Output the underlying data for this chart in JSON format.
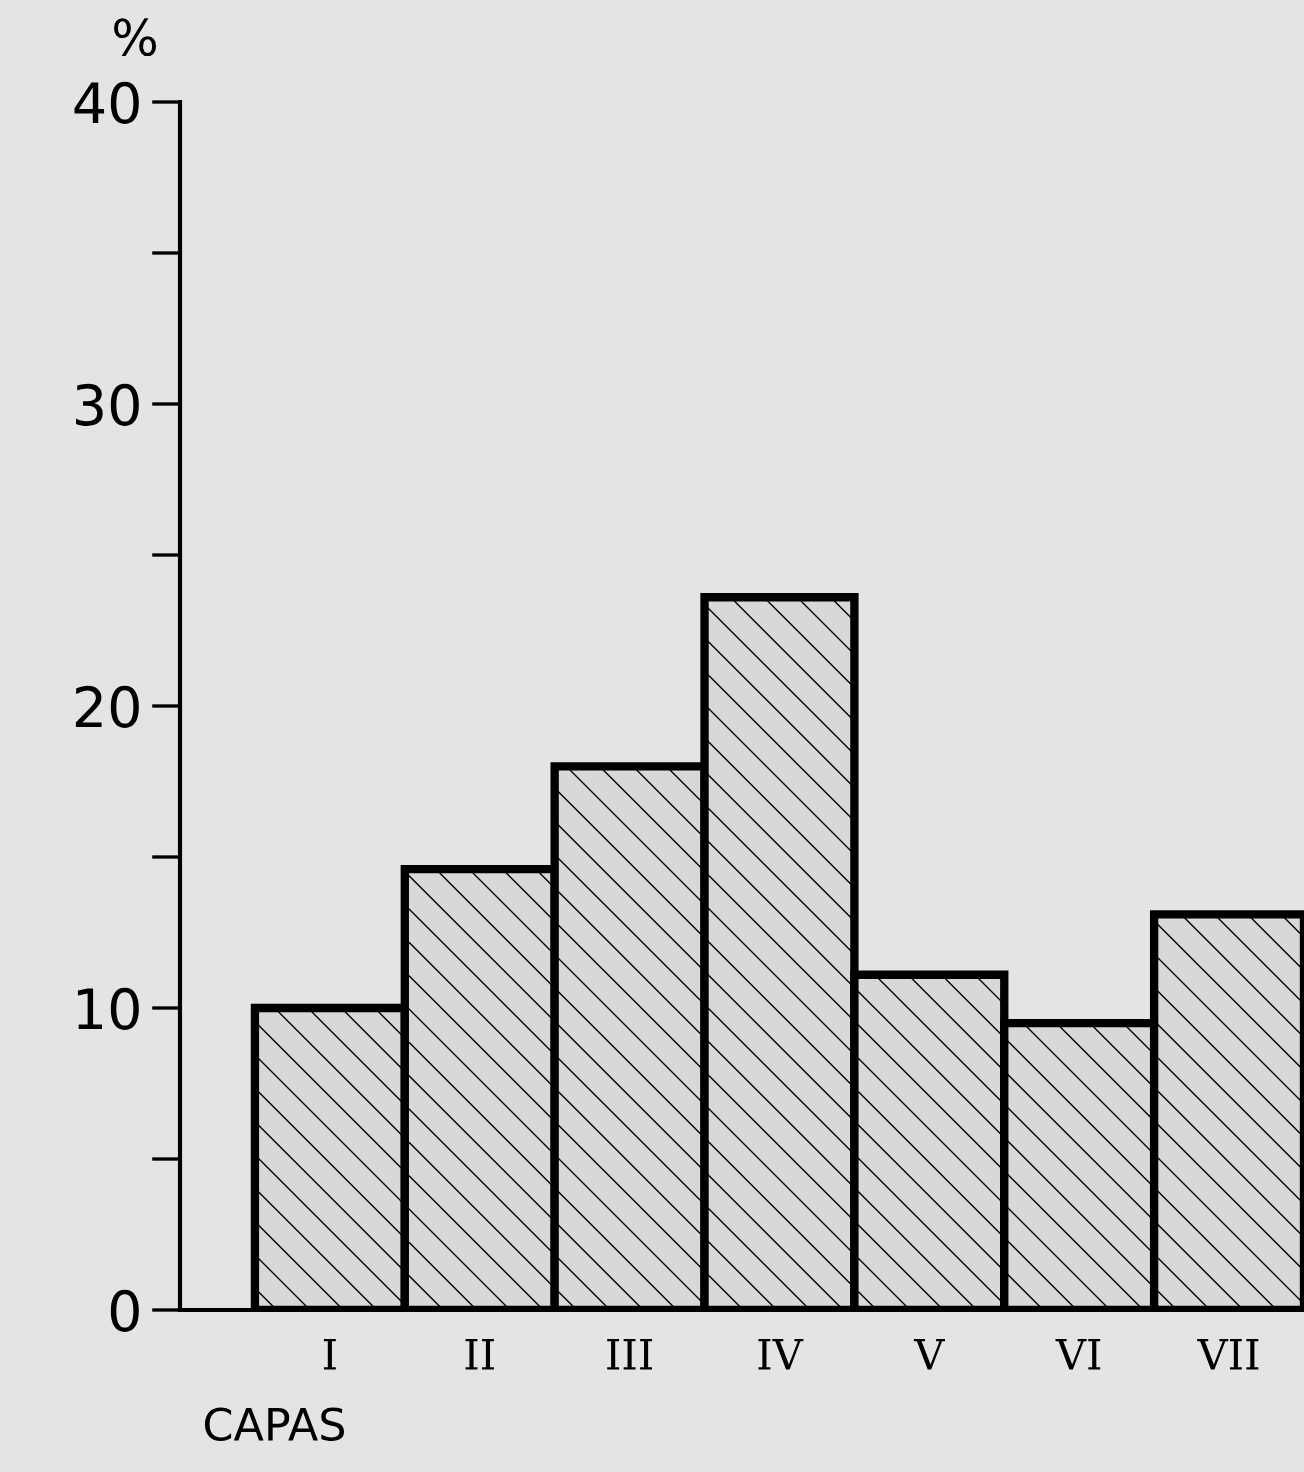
{
  "chart_data": {
    "type": "bar",
    "ylabel": "%",
    "xlabel": "CAPAS",
    "categories": [
      "I",
      "II",
      "III",
      "IV",
      "V",
      "VI",
      "VII"
    ],
    "values": [
      10,
      14.6,
      18,
      23.6,
      11.1,
      9.5,
      13.1
    ],
    "color": "#000000",
    "ylim": [
      0,
      40
    ],
    "yticks": [
      0,
      {
        "value": 5,
        "label": null
      },
      10,
      {
        "value": 15,
        "label": null
      },
      20,
      {
        "value": 25,
        "label": null
      },
      30,
      {
        "value": 35,
        "label": null
      },
      40
    ],
    "grid": false
  }
}
